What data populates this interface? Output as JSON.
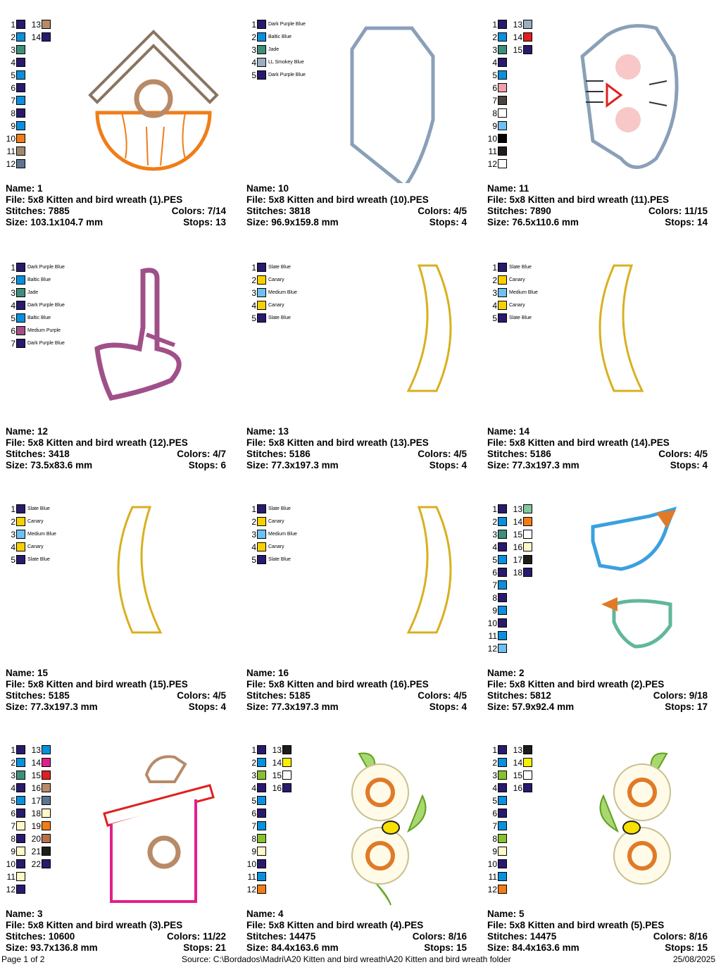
{
  "palette": {
    "navy": "#2a1a6e",
    "blue": "#0a8fdc",
    "jade": "#3e8f7a",
    "orange": "#f07d18",
    "tan": "#a08870",
    "slate": "#5e7590",
    "brown": "#b88a68",
    "greyblue": "#9aafc0",
    "red": "#e02020",
    "pink": "#f0a0a8",
    "darkgrey": "#4a4440",
    "white": "#ffffff",
    "lightblue": "#6ec0f0",
    "black": "#000000",
    "nearblack": "#201c1a",
    "mint": "#80c8a0",
    "cream": "#fff8c8",
    "magenta": "#e0208a",
    "sienna": "#b8704a",
    "green": "#88c030",
    "yellow": "#f8f000",
    "purple": "#a05088",
    "canary": "#f8d000"
  },
  "labels": {
    "name": "Name:",
    "file": "File:",
    "stitches": "Stitches:",
    "colors": "Colors:",
    "size": "Size:",
    "stops": "Stops:"
  },
  "designs": [
    {
      "name": "1",
      "file": "5x8 Kitten and bird wreath (1).PES",
      "stitches": "7885",
      "colors": "7/14",
      "size": "103.1x104.7 mm",
      "stops": "13",
      "artwork": "birdhouse-icon",
      "swatches": [
        "navy",
        "blue",
        "jade",
        "navy",
        "blue",
        "navy",
        "blue",
        "navy",
        "blue",
        "orange",
        "tan",
        "slate",
        "brown",
        "navy"
      ]
    },
    {
      "name": "10",
      "file": "5x8 Kitten and bird wreath (10).PES",
      "stitches": "3818",
      "colors": "4/5",
      "size": "96.9x159.8 mm",
      "stops": "4",
      "artwork": "patch-outline-icon",
      "swatches": [
        "navy",
        "blue",
        "jade",
        "greyblue",
        "navy"
      ],
      "swatch_labels": [
        "Dark Purple Blue",
        "Baltic Blue",
        "Jade",
        "LL Smokey Blue",
        "Dark Purple Blue"
      ]
    },
    {
      "name": "11",
      "file": "5x8 Kitten and bird wreath (11).PES",
      "stitches": "7890",
      "colors": "11/15",
      "size": "76.5x110.6 mm",
      "stops": "14",
      "artwork": "kitten-face-icon",
      "swatches": [
        "navy",
        "blue",
        "jade",
        "navy",
        "blue",
        "pink",
        "darkgrey",
        "white",
        "lightblue",
        "black",
        "nearblack",
        "white",
        "greyblue",
        "red",
        "navy"
      ]
    },
    {
      "name": "12",
      "file": "5x8 Kitten and bird wreath (12).PES",
      "stitches": "3418",
      "colors": "4/7",
      "size": "73.5x83.6 mm",
      "stops": "6",
      "artwork": "boot-icon",
      "swatches": [
        "navy",
        "blue",
        "jade",
        "navy",
        "blue",
        "purple",
        "navy"
      ],
      "swatch_labels": [
        "Dark Purple Blue",
        "Baltic Blue",
        "Jade",
        "Dark Purple Blue",
        "Baltic Blue",
        "Medium Purple",
        "Dark Purple Blue"
      ]
    },
    {
      "name": "13",
      "file": "5x8 Kitten and bird wreath (13).PES",
      "stitches": "5186",
      "colors": "4/5",
      "size": "77.3x197.3 mm",
      "stops": "4",
      "artwork": "arc-right-icon",
      "swatches": [
        "navy",
        "canary",
        "lightblue",
        "canary",
        "navy"
      ],
      "swatch_labels": [
        "Slate Blue",
        "Canary",
        "Medium Blue",
        "Canary",
        "Slate Blue"
      ]
    },
    {
      "name": "14",
      "file": "5x8 Kitten and bird wreath (14).PES",
      "stitches": "5186",
      "colors": "4/5",
      "size": "77.3x197.3 mm",
      "stops": "4",
      "artwork": "arc-left-icon",
      "swatches": [
        "navy",
        "canary",
        "lightblue",
        "canary",
        "navy"
      ],
      "swatch_labels": [
        "Slate Blue",
        "Canary",
        "Medium Blue",
        "Canary",
        "Slate Blue"
      ]
    },
    {
      "name": "15",
      "file": "5x8 Kitten and bird wreath (15).PES",
      "stitches": "5185",
      "colors": "4/5",
      "size": "77.3x197.3 mm",
      "stops": "4",
      "artwork": "arc-left-icon",
      "swatches": [
        "navy",
        "canary",
        "lightblue",
        "canary",
        "navy"
      ],
      "swatch_labels": [
        "Slate Blue",
        "Canary",
        "Medium Blue",
        "Canary",
        "Slate Blue"
      ]
    },
    {
      "name": "16",
      "file": "5x8 Kitten and bird wreath (16).PES",
      "stitches": "5185",
      "colors": "4/5",
      "size": "77.3x197.3 mm",
      "stops": "4",
      "artwork": "arc-right-icon",
      "swatches": [
        "navy",
        "canary",
        "lightblue",
        "canary",
        "navy"
      ],
      "swatch_labels": [
        "Slate Blue",
        "Canary",
        "Medium Blue",
        "Canary",
        "Slate Blue"
      ]
    },
    {
      "name": "2",
      "file": "5x8 Kitten and bird wreath (2).PES",
      "stitches": "5812",
      "colors": "9/18",
      "size": "57.9x92.4 mm",
      "stops": "17",
      "artwork": "birds-icon",
      "swatches": [
        "navy",
        "blue",
        "jade",
        "navy",
        "blue",
        "navy",
        "blue",
        "navy",
        "blue",
        "navy",
        "blue",
        "lightblue",
        "mint",
        "orange",
        "white",
        "cream",
        "nearblack",
        "navy"
      ]
    },
    {
      "name": "3",
      "file": "5x8 Kitten and bird wreath (3).PES",
      "stitches": "10600",
      "colors": "11/22",
      "size": "93.7x136.8 mm",
      "stops": "21",
      "artwork": "birdhouse-bird-icon",
      "swatches": [
        "navy",
        "blue",
        "jade",
        "navy",
        "blue",
        "navy",
        "cream",
        "navy",
        "cream",
        "navy",
        "cream",
        "navy",
        "blue",
        "magenta",
        "red",
        "brown",
        "slate",
        "cream",
        "orange",
        "sienna",
        "nearblack",
        "navy"
      ]
    },
    {
      "name": "4",
      "file": "5x8 Kitten and bird wreath (4).PES",
      "stitches": "14475",
      "colors": "8/16",
      "size": "84.4x163.6 mm",
      "stops": "15",
      "artwork": "flowers-bee-icon",
      "swatches": [
        "navy",
        "blue",
        "green",
        "navy",
        "blue",
        "navy",
        "blue",
        "green",
        "cream",
        "navy",
        "blue",
        "orange",
        "nearblack",
        "yellow",
        "white",
        "navy"
      ]
    },
    {
      "name": "5",
      "file": "5x8 Kitten and bird wreath (5).PES",
      "stitches": "14475",
      "colors": "8/16",
      "size": "84.4x163.6 mm",
      "stops": "15",
      "artwork": "flowers-bee-mirrored-icon",
      "swatches": [
        "navy",
        "blue",
        "green",
        "navy",
        "blue",
        "navy",
        "blue",
        "green",
        "cream",
        "navy",
        "blue",
        "orange",
        "nearblack",
        "yellow",
        "white",
        "navy"
      ]
    }
  ],
  "footer": {
    "page": "Page 1 of 2",
    "source": "Source: C:\\Bordados\\Madri\\A20 Kitten and bird wreath\\A20 Kitten and bird wreath folder",
    "date": "25/08/2025"
  }
}
